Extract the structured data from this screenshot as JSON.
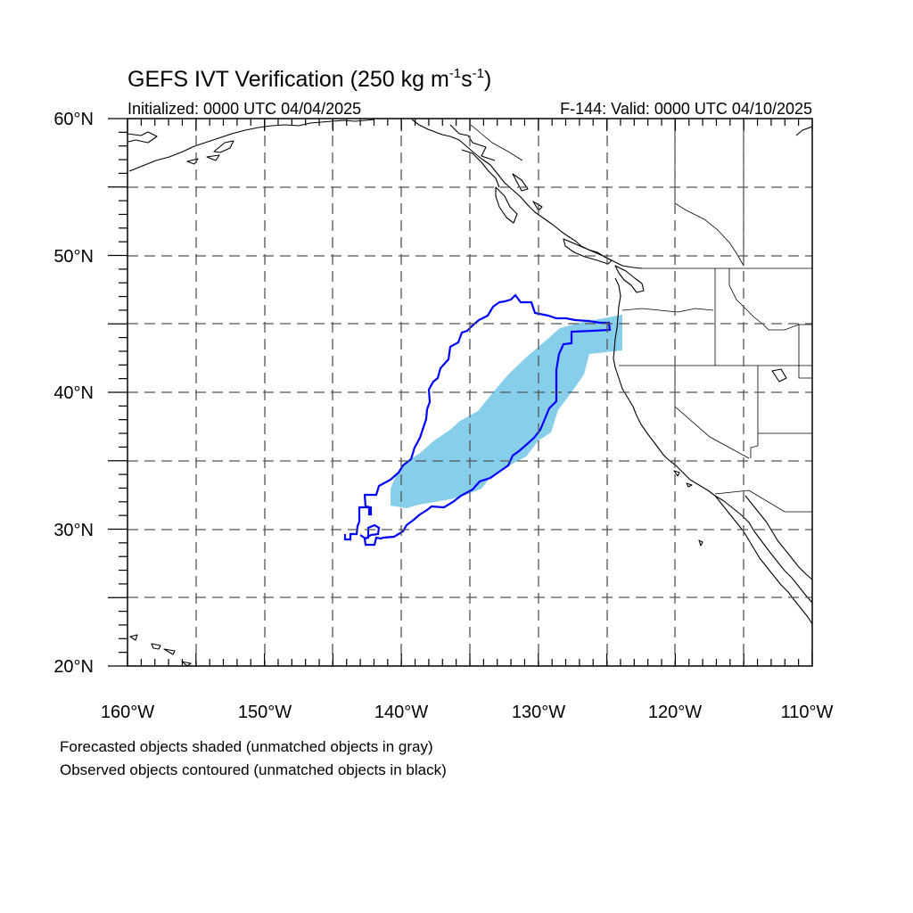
{
  "title": {
    "main": "GEFS IVT Verification (250 kg m",
    "exp1": "-1",
    "mid": "s",
    "exp2": "-1",
    "close": ")"
  },
  "initialized": "Initialized: 0000 UTC 04/04/2025",
  "valid": "F-144: Valid: 0000 UTC 04/10/2025",
  "lat_labels": [
    "60°N",
    "50°N",
    "40°N",
    "30°N",
    "20°N"
  ],
  "lon_labels": [
    "160°W",
    "150°W",
    "140°W",
    "130°W",
    "120°W",
    "110°W"
  ],
  "notes": [
    "Forecasted objects shaded (unmatched objects in gray)",
    "Observed objects contoured (unmatched objects in black)"
  ],
  "map_extent": {
    "lon": [
      -160,
      -110
    ],
    "lat": [
      20,
      60
    ]
  },
  "grid": {
    "major_lon_step": 5,
    "major_lat_step": 5,
    "style": "dashed"
  },
  "colors": {
    "forecast_fill": "#87ceeb",
    "observed_contour": "#0000ff",
    "coastline": "#000000",
    "grid": "#555555"
  },
  "forecast_object": {
    "description_lonlat": [
      [
        -141.0,
        31.6
      ],
      [
        -141.0,
        32.9
      ],
      [
        -140.2,
        33.9
      ],
      [
        -139.0,
        35.0
      ],
      [
        -137.9,
        36.0
      ],
      [
        -136.7,
        37.0
      ],
      [
        -135.0,
        38.0
      ],
      [
        -133.8,
        39.2
      ],
      [
        -132.6,
        40.3
      ],
      [
        -131.0,
        41.3
      ],
      [
        -129.6,
        42.5
      ],
      [
        -128.3,
        43.5
      ],
      [
        -127.0,
        44.5
      ],
      [
        -125.7,
        45.2
      ],
      [
        -124.2,
        45.8
      ],
      [
        -123.7,
        45.8
      ],
      [
        -124.2,
        43.0
      ],
      [
        -126.3,
        43.0
      ],
      [
        -126.7,
        41.0
      ],
      [
        -127.6,
        39.7
      ],
      [
        -128.7,
        38.4
      ],
      [
        -129.9,
        37.0
      ],
      [
        -130.6,
        35.8
      ],
      [
        -131.9,
        34.2
      ],
      [
        -133.4,
        33.2
      ],
      [
        -135.0,
        32.6
      ],
      [
        -137.0,
        32.0
      ],
      [
        -138.6,
        31.6
      ]
    ]
  },
  "observed_object": {
    "description_lonlat": [
      [
        -144.0,
        29.2
      ],
      [
        -143.7,
        29.8
      ],
      [
        -142.8,
        30.3
      ],
      [
        -142.9,
        31.6
      ],
      [
        -141.9,
        32.6
      ],
      [
        -140.7,
        33.4
      ],
      [
        -139.9,
        34.3
      ],
      [
        -139.5,
        35.6
      ],
      [
        -138.5,
        37.0
      ],
      [
        -138.0,
        38.2
      ],
      [
        -137.6,
        39.5
      ],
      [
        -137.3,
        40.4
      ],
      [
        -136.6,
        41.2
      ],
      [
        -136.0,
        42.4
      ],
      [
        -135.5,
        43.6
      ],
      [
        -134.6,
        44.6
      ],
      [
        -133.5,
        45.2
      ],
      [
        -132.3,
        45.9
      ],
      [
        -131.6,
        47.1
      ],
      [
        -130.5,
        45.9
      ],
      [
        -129.0,
        45.9
      ],
      [
        -127.5,
        45.4
      ],
      [
        -126.0,
        45.2
      ],
      [
        -124.8,
        45.0
      ],
      [
        -124.9,
        44.3
      ],
      [
        -127.5,
        44.4
      ],
      [
        -128.1,
        43.2
      ],
      [
        -128.6,
        42.0
      ],
      [
        -128.9,
        40.0
      ],
      [
        -129.6,
        38.6
      ],
      [
        -130.6,
        37.3
      ],
      [
        -131.6,
        36.0
      ],
      [
        -132.6,
        35.0
      ],
      [
        -133.4,
        33.6
      ],
      [
        -135.0,
        32.3
      ],
      [
        -136.6,
        31.5
      ],
      [
        -138.5,
        31.1
      ],
      [
        -140.0,
        30.6
      ],
      [
        -141.2,
        29.7
      ],
      [
        -142.0,
        29.0
      ],
      [
        -142.9,
        28.9
      ],
      [
        -143.0,
        29.9
      ],
      [
        -143.4,
        29.2
      ]
    ]
  }
}
